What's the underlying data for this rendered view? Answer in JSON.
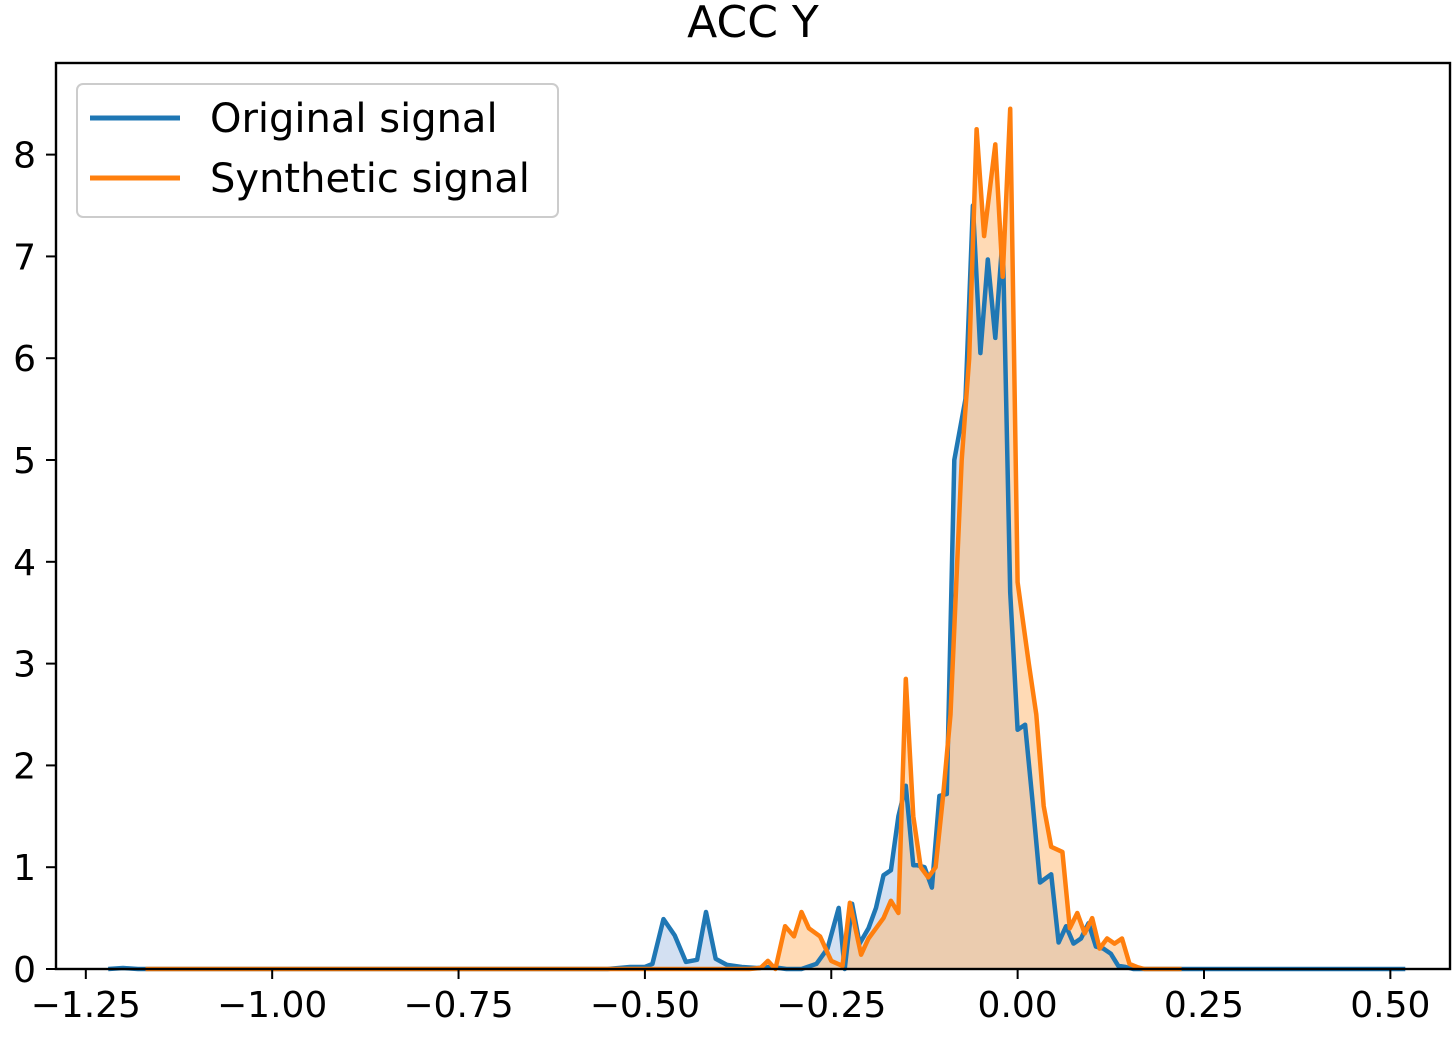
{
  "chart_data": {
    "type": "area",
    "title": "ACC Y",
    "xlabel": "",
    "ylabel": "",
    "xlim": [
      -1.29,
      0.58
    ],
    "ylim": [
      0,
      8.9
    ],
    "xticks": [
      -1.25,
      -1.0,
      -0.75,
      -0.5,
      -0.25,
      0.0,
      0.25,
      0.5
    ],
    "xtick_labels": [
      "−1.25",
      "−1.00",
      "−0.75",
      "−0.50",
      "−0.25",
      "0.00",
      "0.25",
      "0.50"
    ],
    "yticks": [
      0,
      1,
      2,
      3,
      4,
      5,
      6,
      7,
      8
    ],
    "ytick_labels": [
      "0",
      "1",
      "2",
      "3",
      "4",
      "5",
      "6",
      "7",
      "8"
    ],
    "grid": false,
    "legend_position": "top-left",
    "series": [
      {
        "name": "Original signal",
        "color": "#1f77b4",
        "fill": "#aec7e8",
        "x": [
          -1.22,
          -1.2,
          -1.18,
          -1.15,
          -1.1,
          -1.0,
          -0.9,
          -0.8,
          -0.7,
          -0.6,
          -0.55,
          -0.52,
          -0.5,
          -0.49,
          -0.475,
          -0.46,
          -0.445,
          -0.43,
          -0.418,
          -0.405,
          -0.39,
          -0.37,
          -0.35,
          -0.33,
          -0.31,
          -0.29,
          -0.27,
          -0.255,
          -0.24,
          -0.232,
          -0.222,
          -0.212,
          -0.2,
          -0.19,
          -0.18,
          -0.17,
          -0.16,
          -0.15,
          -0.14,
          -0.135,
          -0.125,
          -0.115,
          -0.105,
          -0.095,
          -0.085,
          -0.07,
          -0.06,
          -0.05,
          -0.04,
          -0.03,
          -0.02,
          -0.01,
          0.0,
          0.01,
          0.02,
          0.03,
          0.045,
          0.055,
          0.065,
          0.075,
          0.085,
          0.095,
          0.105,
          0.115,
          0.125,
          0.135,
          0.145,
          0.155,
          0.17,
          0.18,
          0.19,
          0.2,
          0.22,
          0.24,
          0.26,
          0.3,
          0.35,
          0.4,
          0.45,
          0.5,
          0.52
        ],
        "y": [
          0.0,
          0.01,
          0.0,
          0.0,
          0.0,
          0.0,
          0.0,
          0.0,
          0.0,
          0.0,
          0.0,
          0.02,
          0.02,
          0.05,
          0.49,
          0.33,
          0.07,
          0.09,
          0.56,
          0.1,
          0.04,
          0.02,
          0.01,
          0.02,
          0.0,
          0.0,
          0.05,
          0.2,
          0.6,
          0.0,
          0.64,
          0.25,
          0.4,
          0.6,
          0.92,
          0.97,
          1.5,
          1.8,
          1.02,
          1.02,
          1.0,
          0.8,
          1.7,
          1.72,
          5.0,
          5.6,
          7.5,
          6.05,
          6.97,
          6.2,
          7.2,
          3.7,
          2.35,
          2.4,
          1.65,
          0.85,
          0.93,
          0.26,
          0.42,
          0.25,
          0.3,
          0.45,
          0.22,
          0.2,
          0.15,
          0.03,
          0.02,
          0.0,
          0.0,
          0.0,
          0.0,
          0.0,
          0.0,
          0.0,
          0.0,
          0.0,
          0.0,
          0.0,
          0.0,
          0.0,
          0.0
        ]
      },
      {
        "name": "Synthetic signal",
        "color": "#ff7f0e",
        "fill": "#ffbb78",
        "x": [
          -1.17,
          -1.1,
          -1.0,
          -0.9,
          -0.8,
          -0.7,
          -0.6,
          -0.5,
          -0.45,
          -0.4,
          -0.38,
          -0.36,
          -0.345,
          -0.335,
          -0.325,
          -0.312,
          -0.3,
          -0.29,
          -0.28,
          -0.265,
          -0.25,
          -0.235,
          -0.225,
          -0.21,
          -0.2,
          -0.19,
          -0.18,
          -0.17,
          -0.16,
          -0.15,
          -0.14,
          -0.13,
          -0.12,
          -0.11,
          -0.1,
          -0.09,
          -0.075,
          -0.065,
          -0.055,
          -0.045,
          -0.03,
          -0.02,
          -0.01,
          0.0,
          0.015,
          0.025,
          0.035,
          0.045,
          0.06,
          0.07,
          0.08,
          0.09,
          0.1,
          0.11,
          0.12,
          0.13,
          0.14,
          0.15,
          0.16,
          0.17,
          0.18,
          0.2,
          0.22
        ],
        "y": [
          0.0,
          0.0,
          0.0,
          0.0,
          0.0,
          0.0,
          0.0,
          0.0,
          0.0,
          0.0,
          0.0,
          0.0,
          0.01,
          0.08,
          0.0,
          0.42,
          0.32,
          0.56,
          0.4,
          0.32,
          0.08,
          0.03,
          0.65,
          0.14,
          0.3,
          0.4,
          0.5,
          0.67,
          0.55,
          2.85,
          1.5,
          1.0,
          0.9,
          1.0,
          1.7,
          2.5,
          5.0,
          6.0,
          8.25,
          7.2,
          8.1,
          6.8,
          8.45,
          3.8,
          3.0,
          2.5,
          1.6,
          1.2,
          1.15,
          0.4,
          0.55,
          0.35,
          0.5,
          0.2,
          0.3,
          0.25,
          0.3,
          0.05,
          0.02,
          0.0,
          0.0,
          0.0,
          0.0
        ]
      }
    ]
  }
}
